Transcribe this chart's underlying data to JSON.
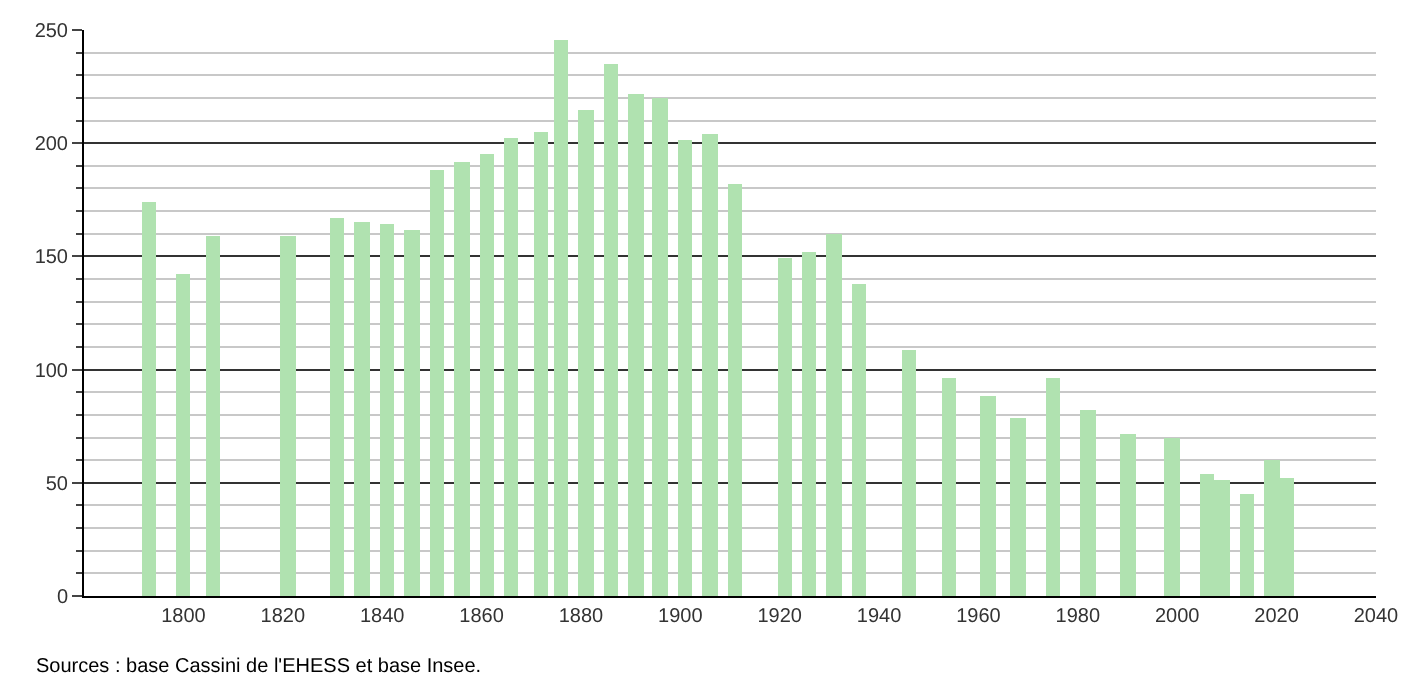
{
  "chart_data": {
    "type": "bar",
    "x": [
      1793,
      1800,
      1806,
      1821,
      1831,
      1836,
      1841,
      1846,
      1851,
      1856,
      1861,
      1866,
      1872,
      1876,
      1881,
      1886,
      1891,
      1896,
      1901,
      1906,
      1911,
      1921,
      1926,
      1931,
      1936,
      1946,
      1954,
      1962,
      1968,
      1975,
      1982,
      1990,
      1999,
      2006,
      2009,
      2014,
      2019,
      2022
    ],
    "values": [
      174,
      142,
      159,
      159,
      167,
      165,
      164,
      162,
      188,
      192,
      195,
      202,
      205,
      246,
      215,
      235,
      222,
      220,
      201,
      204,
      182,
      149,
      152,
      160,
      138,
      109,
      96,
      88,
      79,
      96,
      82,
      72,
      70,
      54,
      51,
      45,
      60,
      52
    ],
    "color": "#b0e2b0",
    "xlim": [
      1780,
      2040
    ],
    "xticks": [
      1800,
      1820,
      1840,
      1860,
      1880,
      1900,
      1920,
      1940,
      1960,
      1980,
      2000,
      2020,
      2040
    ],
    "ylim": [
      0,
      250
    ],
    "yticks": [
      0,
      50,
      100,
      150,
      200,
      250
    ],
    "grid": "y",
    "annotations": [
      "Sources : base Cassini de l'EHESS et base Insee."
    ]
  }
}
